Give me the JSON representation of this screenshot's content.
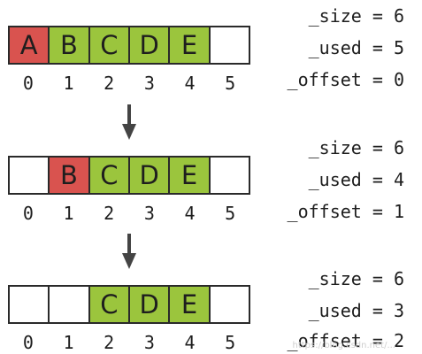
{
  "states": [
    {
      "cells": [
        {
          "label": "A",
          "state": "removed"
        },
        {
          "label": "B",
          "state": "used"
        },
        {
          "label": "C",
          "state": "used"
        },
        {
          "label": "D",
          "state": "used"
        },
        {
          "label": "E",
          "state": "used"
        },
        {
          "label": "",
          "state": "empty"
        }
      ],
      "indices": [
        "0",
        "1",
        "2",
        "3",
        "4",
        "5"
      ],
      "vars": {
        "size": "_size = 6",
        "used": "_used = 5",
        "offset": "_offset = 0"
      }
    },
    {
      "cells": [
        {
          "label": "",
          "state": "empty"
        },
        {
          "label": "B",
          "state": "removed"
        },
        {
          "label": "C",
          "state": "used"
        },
        {
          "label": "D",
          "state": "used"
        },
        {
          "label": "E",
          "state": "used"
        },
        {
          "label": "",
          "state": "empty"
        }
      ],
      "indices": [
        "0",
        "1",
        "2",
        "3",
        "4",
        "5"
      ],
      "vars": {
        "size": "_size = 6",
        "used": "_used = 4",
        "offset": "_offset = 1"
      }
    },
    {
      "cells": [
        {
          "label": "",
          "state": "empty"
        },
        {
          "label": "",
          "state": "empty"
        },
        {
          "label": "C",
          "state": "used"
        },
        {
          "label": "D",
          "state": "used"
        },
        {
          "label": "E",
          "state": "used"
        },
        {
          "label": "",
          "state": "empty"
        }
      ],
      "indices": [
        "0",
        "1",
        "2",
        "3",
        "4",
        "5"
      ],
      "vars": {
        "size": "_size = 6",
        "used": "_used = 3",
        "offset": "_offset = 2"
      }
    }
  ],
  "watermark": "https://blog.csdn.net/...",
  "colors": {
    "removed": "#d9534f",
    "used": "#9bc53d",
    "empty": "#ffffff",
    "arrow": "#444444"
  }
}
